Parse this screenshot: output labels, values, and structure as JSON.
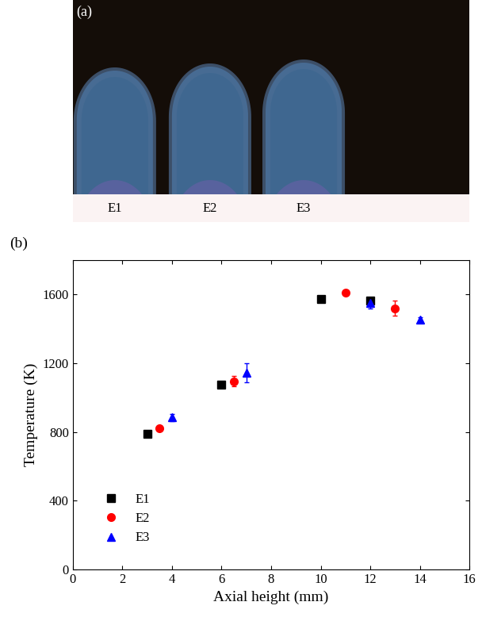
{
  "image_panel": {
    "label": "(a)",
    "captions": [
      "E1",
      "E2",
      "E3"
    ]
  },
  "chart_data": {
    "type": "scatter",
    "title": "(b)",
    "x_label": "Axial height (mm)",
    "y_label": "Temperature (K)",
    "xlim": [
      0,
      16
    ],
    "xticks": [
      0,
      2,
      4,
      6,
      8,
      10,
      12,
      14,
      16
    ],
    "ylim": [
      0,
      1800
    ],
    "yticks": [
      0,
      400,
      800,
      1200,
      1600
    ],
    "legend": "lower left",
    "series": [
      {
        "name": "E1",
        "color": "#000000",
        "marker": "square",
        "x": [
          3,
          6,
          10,
          12
        ],
        "values": [
          790,
          1075,
          1575,
          1565
        ],
        "errors": [
          10,
          12,
          10,
          15
        ]
      },
      {
        "name": "E2",
        "color": "#ff0000",
        "marker": "circle",
        "x": [
          3.5,
          6.5,
          11,
          13
        ],
        "values": [
          820,
          1095,
          1610,
          1520
        ],
        "errors": [
          10,
          30,
          12,
          45
        ]
      },
      {
        "name": "E3",
        "color": "#0000ff",
        "marker": "triangle",
        "x": [
          4,
          7,
          12,
          14
        ],
        "values": [
          885,
          1145,
          1550,
          1455
        ],
        "errors": [
          20,
          55,
          30,
          12
        ]
      }
    ]
  }
}
